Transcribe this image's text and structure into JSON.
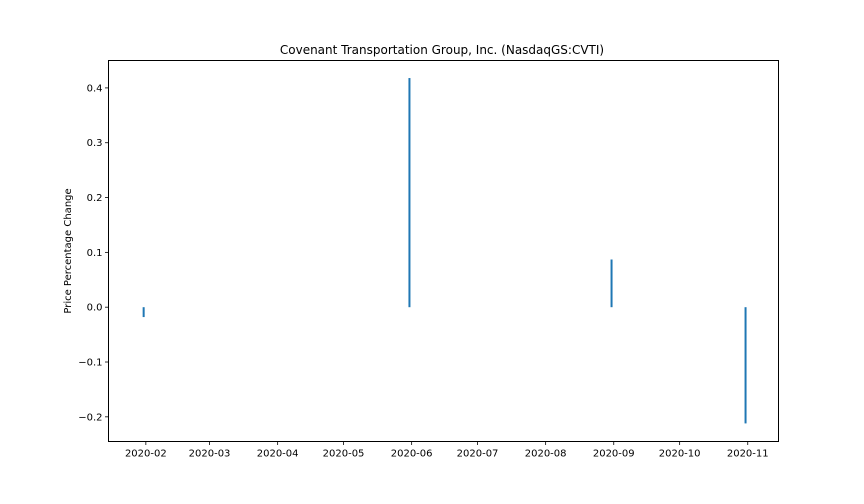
{
  "chart_data": {
    "type": "bar",
    "title": "Covenant Transportation Group, Inc. (NasdaqGS:CVTI)",
    "xlabel": "",
    "ylabel": "Price Percentage Change",
    "x_ticks": [
      "2020-02",
      "2020-03",
      "2020-04",
      "2020-05",
      "2020-06",
      "2020-07",
      "2020-08",
      "2020-09",
      "2020-10",
      "2020-11"
    ],
    "y_ticks": [
      -0.2,
      -0.1,
      0.0,
      0.1,
      0.2,
      0.3,
      0.4
    ],
    "y_tick_labels": [
      "−0.2",
      "−0.1",
      "0.0",
      "0.1",
      "0.2",
      "0.3",
      "0.4"
    ],
    "xlim": [
      "2020-01-15",
      "2020-11-15"
    ],
    "ylim": [
      -0.245,
      0.45
    ],
    "points": [
      {
        "x": "2020-01-31",
        "y": -0.018
      },
      {
        "x": "2020-05-31",
        "y": 0.418
      },
      {
        "x": "2020-08-31",
        "y": 0.087
      },
      {
        "x": "2020-10-31",
        "y": -0.212
      }
    ],
    "bar_color": "#1f77b4",
    "grid": false,
    "legend": "none"
  }
}
